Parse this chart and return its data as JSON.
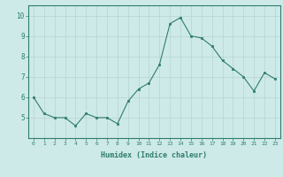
{
  "x": [
    0,
    1,
    2,
    3,
    4,
    5,
    6,
    7,
    8,
    9,
    10,
    11,
    12,
    13,
    14,
    15,
    16,
    17,
    18,
    19,
    20,
    21,
    22,
    23
  ],
  "y": [
    6.0,
    5.2,
    5.0,
    5.0,
    4.6,
    5.2,
    5.0,
    5.0,
    4.7,
    5.8,
    6.4,
    6.7,
    7.6,
    9.6,
    9.9,
    9.0,
    8.9,
    8.5,
    7.8,
    7.4,
    7.0,
    6.3,
    7.2,
    6.9
  ],
  "xlabel": "Humidex (Indice chaleur)",
  "ylim": [
    4.0,
    10.5
  ],
  "xlim": [
    -0.5,
    23.5
  ],
  "yticks": [
    5,
    6,
    7,
    8,
    9,
    10
  ],
  "xticks": [
    0,
    1,
    2,
    3,
    4,
    5,
    6,
    7,
    8,
    9,
    10,
    11,
    12,
    13,
    14,
    15,
    16,
    17,
    18,
    19,
    20,
    21,
    22,
    23
  ],
  "line_color": "#2e7d6e",
  "marker_color": "#2e7d6e",
  "bg_color": "#ceeae8",
  "grid_color": "#b8d4d2",
  "axis_color": "#2e7d6e",
  "tick_label_color": "#2e7d6e",
  "xlabel_color": "#2e7d6e"
}
